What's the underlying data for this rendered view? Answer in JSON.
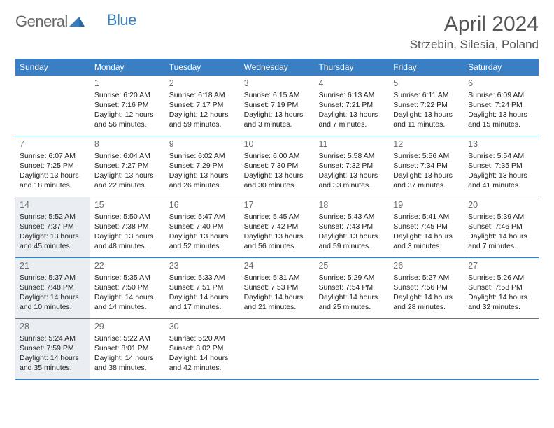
{
  "logo": {
    "general": "General",
    "blue": "Blue"
  },
  "title": "April 2024",
  "location": "Strzebin, Silesia, Poland",
  "colors": {
    "header_bg": "#3a7fc4",
    "header_text": "#ffffff",
    "border": "#3a7fc4",
    "shaded_bg": "#eaeef3",
    "page_bg": "#ffffff",
    "daynum_color": "#6a6a6a",
    "body_text": "#222222",
    "title_color": "#555555"
  },
  "day_headers": [
    "Sunday",
    "Monday",
    "Tuesday",
    "Wednesday",
    "Thursday",
    "Friday",
    "Saturday"
  ],
  "weeks": [
    [
      {
        "empty": true
      },
      {
        "num": "1",
        "sunrise": "Sunrise: 6:20 AM",
        "sunset": "Sunset: 7:16 PM",
        "daylight1": "Daylight: 12 hours",
        "daylight2": "and 56 minutes."
      },
      {
        "num": "2",
        "sunrise": "Sunrise: 6:18 AM",
        "sunset": "Sunset: 7:17 PM",
        "daylight1": "Daylight: 12 hours",
        "daylight2": "and 59 minutes."
      },
      {
        "num": "3",
        "sunrise": "Sunrise: 6:15 AM",
        "sunset": "Sunset: 7:19 PM",
        "daylight1": "Daylight: 13 hours",
        "daylight2": "and 3 minutes."
      },
      {
        "num": "4",
        "sunrise": "Sunrise: 6:13 AM",
        "sunset": "Sunset: 7:21 PM",
        "daylight1": "Daylight: 13 hours",
        "daylight2": "and 7 minutes."
      },
      {
        "num": "5",
        "sunrise": "Sunrise: 6:11 AM",
        "sunset": "Sunset: 7:22 PM",
        "daylight1": "Daylight: 13 hours",
        "daylight2": "and 11 minutes."
      },
      {
        "num": "6",
        "sunrise": "Sunrise: 6:09 AM",
        "sunset": "Sunset: 7:24 PM",
        "daylight1": "Daylight: 13 hours",
        "daylight2": "and 15 minutes."
      }
    ],
    [
      {
        "num": "7",
        "sunrise": "Sunrise: 6:07 AM",
        "sunset": "Sunset: 7:25 PM",
        "daylight1": "Daylight: 13 hours",
        "daylight2": "and 18 minutes."
      },
      {
        "num": "8",
        "sunrise": "Sunrise: 6:04 AM",
        "sunset": "Sunset: 7:27 PM",
        "daylight1": "Daylight: 13 hours",
        "daylight2": "and 22 minutes."
      },
      {
        "num": "9",
        "sunrise": "Sunrise: 6:02 AM",
        "sunset": "Sunset: 7:29 PM",
        "daylight1": "Daylight: 13 hours",
        "daylight2": "and 26 minutes."
      },
      {
        "num": "10",
        "sunrise": "Sunrise: 6:00 AM",
        "sunset": "Sunset: 7:30 PM",
        "daylight1": "Daylight: 13 hours",
        "daylight2": "and 30 minutes."
      },
      {
        "num": "11",
        "sunrise": "Sunrise: 5:58 AM",
        "sunset": "Sunset: 7:32 PM",
        "daylight1": "Daylight: 13 hours",
        "daylight2": "and 33 minutes."
      },
      {
        "num": "12",
        "sunrise": "Sunrise: 5:56 AM",
        "sunset": "Sunset: 7:34 PM",
        "daylight1": "Daylight: 13 hours",
        "daylight2": "and 37 minutes."
      },
      {
        "num": "13",
        "sunrise": "Sunrise: 5:54 AM",
        "sunset": "Sunset: 7:35 PM",
        "daylight1": "Daylight: 13 hours",
        "daylight2": "and 41 minutes."
      }
    ],
    [
      {
        "num": "14",
        "shaded": true,
        "sunrise": "Sunrise: 5:52 AM",
        "sunset": "Sunset: 7:37 PM",
        "daylight1": "Daylight: 13 hours",
        "daylight2": "and 45 minutes."
      },
      {
        "num": "15",
        "sunrise": "Sunrise: 5:50 AM",
        "sunset": "Sunset: 7:38 PM",
        "daylight1": "Daylight: 13 hours",
        "daylight2": "and 48 minutes."
      },
      {
        "num": "16",
        "sunrise": "Sunrise: 5:47 AM",
        "sunset": "Sunset: 7:40 PM",
        "daylight1": "Daylight: 13 hours",
        "daylight2": "and 52 minutes."
      },
      {
        "num": "17",
        "sunrise": "Sunrise: 5:45 AM",
        "sunset": "Sunset: 7:42 PM",
        "daylight1": "Daylight: 13 hours",
        "daylight2": "and 56 minutes."
      },
      {
        "num": "18",
        "sunrise": "Sunrise: 5:43 AM",
        "sunset": "Sunset: 7:43 PM",
        "daylight1": "Daylight: 13 hours",
        "daylight2": "and 59 minutes."
      },
      {
        "num": "19",
        "sunrise": "Sunrise: 5:41 AM",
        "sunset": "Sunset: 7:45 PM",
        "daylight1": "Daylight: 14 hours",
        "daylight2": "and 3 minutes."
      },
      {
        "num": "20",
        "sunrise": "Sunrise: 5:39 AM",
        "sunset": "Sunset: 7:46 PM",
        "daylight1": "Daylight: 14 hours",
        "daylight2": "and 7 minutes."
      }
    ],
    [
      {
        "num": "21",
        "shaded": true,
        "sunrise": "Sunrise: 5:37 AM",
        "sunset": "Sunset: 7:48 PM",
        "daylight1": "Daylight: 14 hours",
        "daylight2": "and 10 minutes."
      },
      {
        "num": "22",
        "sunrise": "Sunrise: 5:35 AM",
        "sunset": "Sunset: 7:50 PM",
        "daylight1": "Daylight: 14 hours",
        "daylight2": "and 14 minutes."
      },
      {
        "num": "23",
        "sunrise": "Sunrise: 5:33 AM",
        "sunset": "Sunset: 7:51 PM",
        "daylight1": "Daylight: 14 hours",
        "daylight2": "and 17 minutes."
      },
      {
        "num": "24",
        "sunrise": "Sunrise: 5:31 AM",
        "sunset": "Sunset: 7:53 PM",
        "daylight1": "Daylight: 14 hours",
        "daylight2": "and 21 minutes."
      },
      {
        "num": "25",
        "sunrise": "Sunrise: 5:29 AM",
        "sunset": "Sunset: 7:54 PM",
        "daylight1": "Daylight: 14 hours",
        "daylight2": "and 25 minutes."
      },
      {
        "num": "26",
        "sunrise": "Sunrise: 5:27 AM",
        "sunset": "Sunset: 7:56 PM",
        "daylight1": "Daylight: 14 hours",
        "daylight2": "and 28 minutes."
      },
      {
        "num": "27",
        "sunrise": "Sunrise: 5:26 AM",
        "sunset": "Sunset: 7:58 PM",
        "daylight1": "Daylight: 14 hours",
        "daylight2": "and 32 minutes."
      }
    ],
    [
      {
        "num": "28",
        "shaded": true,
        "sunrise": "Sunrise: 5:24 AM",
        "sunset": "Sunset: 7:59 PM",
        "daylight1": "Daylight: 14 hours",
        "daylight2": "and 35 minutes."
      },
      {
        "num": "29",
        "sunrise": "Sunrise: 5:22 AM",
        "sunset": "Sunset: 8:01 PM",
        "daylight1": "Daylight: 14 hours",
        "daylight2": "and 38 minutes."
      },
      {
        "num": "30",
        "sunrise": "Sunrise: 5:20 AM",
        "sunset": "Sunset: 8:02 PM",
        "daylight1": "Daylight: 14 hours",
        "daylight2": "and 42 minutes."
      },
      {
        "empty": true
      },
      {
        "empty": true
      },
      {
        "empty": true
      },
      {
        "empty": true
      }
    ]
  ]
}
